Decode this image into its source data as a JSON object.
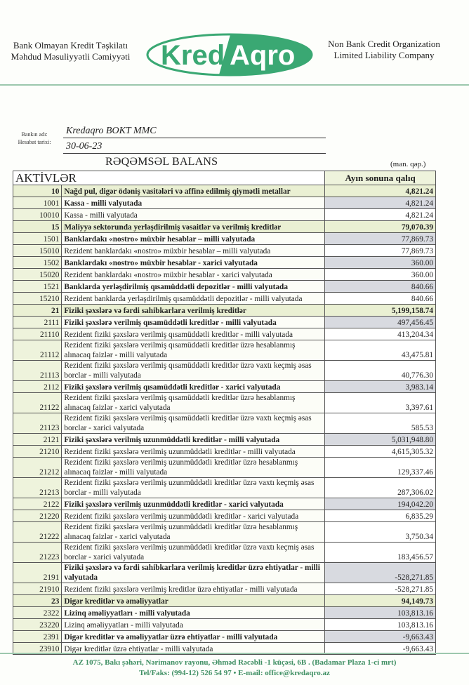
{
  "header": {
    "left_line1": "Bank Olmayan Kredit Təşkilatı",
    "left_line2": "Məhdud Məsuliyyətli Cəmiyyəti",
    "logo_text_1": "Kred",
    "logo_text_2": "Aqro",
    "right_line1": "Non Bank Credit Organization",
    "right_line2": "Limited Liability Company",
    "brand_color": "#3aa873"
  },
  "meta": {
    "bank_label": "Bankın adı:",
    "bank_value": "Kredaqro  BOKT MMC",
    "date_label": "Hesabat tarixi:",
    "date_value": "30-06-23"
  },
  "title": "RƏQƏMSƏL BALANS",
  "unit": "(man. qəp.)",
  "table": {
    "section": "AKTİVLƏR",
    "value_header": "Ayın sonuna qalıq",
    "rows": [
      {
        "code": "10",
        "desc": "Nağd pul, digər ödəniş vasitələri və affinə edilmiş qiymətli metallar",
        "value": "4,821.24",
        "level": 1
      },
      {
        "code": "1001",
        "desc": "Kassa - milli valyutada",
        "value": "4,821.24",
        "level": 2
      },
      {
        "code": "10010",
        "desc": "Kassa - milli valyutada",
        "value": "4,821.24",
        "level": 3
      },
      {
        "code": "15",
        "desc": "Maliyyə sektorunda yerləşdirilmiş vəsaitlər və verilmiş kreditlər",
        "value": "79,070.39",
        "level": 1
      },
      {
        "code": "1501",
        "desc": "Banklardakı «nostro»  müxbir hesablar – milli valyutada",
        "value": "77,869.73",
        "level": 2
      },
      {
        "code": "15010",
        "desc": "Rezident banklardakı «nostro»  müxbir hesablar – milli valyutada",
        "value": "77,869.73",
        "level": 3
      },
      {
        "code": "1502",
        "desc": "Banklardakı «nostro» müxbir hesablar - xarici valyutada",
        "value": "360.00",
        "level": 2
      },
      {
        "code": "15020",
        "desc": "Rezident banklardakı «nostro» müxbir hesablar - xarici valyutada",
        "value": "360.00",
        "level": 3
      },
      {
        "code": "1521",
        "desc": "Banklarda yerləşdirilmiş qısamüddətli depozitlər - milli valyutada",
        "value": "840.66",
        "level": 2
      },
      {
        "code": "15210",
        "desc": "Rezident banklarda yerləşdirilmiş qısamüddətli depozitlər - milli valyutada",
        "value": "840.66",
        "level": 3
      },
      {
        "code": "21",
        "desc": "Fiziki şəxslərə və fərdi sahibkarlara verilmiş kreditlər",
        "value": "5,199,158.74",
        "level": 1
      },
      {
        "code": "2111",
        "desc": "Fiziki şəxslərə verilmiş qısamüddətli kreditlər - milli valyutada",
        "value": "497,456.45",
        "level": 2
      },
      {
        "code": "21110",
        "desc": "Rezident fiziki şəxslərə verilmiş qısamüddətli kreditlər - milli valyutada",
        "value": "413,204.34",
        "level": 3
      },
      {
        "code": "21112",
        "desc": "Rezident fiziki şəxslərə verilmiş qısamüddətli kreditlər üzrə hesablanmış alınacaq faizlər - milli valyutada",
        "value": "43,475.81",
        "level": 3
      },
      {
        "code": "21113",
        "desc": "Rezident fiziki şəxslərə verilmiş qısamüddətli kreditlər üzrə vaxtı keçmiş əsas borclar - milli valyutada",
        "value": "40,776.30",
        "level": 3
      },
      {
        "code": "2112",
        "desc": "Fiziki şəxslərə verilmiş qısamüddətli kreditlər - xarici valyutada",
        "value": "3,983.14",
        "level": 2
      },
      {
        "code": "21122",
        "desc": "Rezident fiziki şəxslərə verilmiş qısamüddətli kreditlər üzrə hesablanmış alınacaq faizlər - xarici valyutada",
        "value": "3,397.61",
        "level": 3
      },
      {
        "code": "21123",
        "desc": "Rezident fiziki şəxslərə verilmiş qısamüddətli kreditlər üzrə vaxtı keçmiş əsas borclar - xarici valyutada",
        "value": "585.53",
        "level": 3
      },
      {
        "code": "2121",
        "desc": "Fiziki şəxslərə verilmiş uzunmüddətli kreditlər - milli valyutada",
        "value": "5,031,948.80",
        "level": 2
      },
      {
        "code": "21210",
        "desc": "Rezident fiziki şəxslərə verilmiş uzunmüddətli kreditlər - milli valyutada",
        "value": "4,615,305.32",
        "level": 3
      },
      {
        "code": "21212",
        "desc": "Rezident fiziki şəxslərə verilmiş uzunmüddətli kreditlər üzrə hesablanmış alınacaq faizlər - milli valyutada",
        "value": "129,337.46",
        "level": 3
      },
      {
        "code": "21213",
        "desc": "Rezident fiziki şəxslərə verilmiş uzunmüddətli kreditlər üzrə vaxtı keçmiş əsas borclar - milli valyutada",
        "value": "287,306.02",
        "level": 3
      },
      {
        "code": "2122",
        "desc": "Fiziki şəxslərə verilmiş uzunmüddətli kreditlər - xarici valyutada",
        "value": "194,042.20",
        "level": 2
      },
      {
        "code": "21220",
        "desc": "Rezident fiziki şəxslərə verilmiş uzunmüddətli kreditlər - xarici valyutada",
        "value": "6,835.29",
        "level": 3
      },
      {
        "code": "21222",
        "desc": "Rezident fiziki şəxslərə verilmiş uzunmüddətli kreditlər üzrə hesablanmış alınacaq faizlər - xarici valyutada",
        "value": "3,750.34",
        "level": 3
      },
      {
        "code": "21223",
        "desc": "Rezident fiziki şəxslərə verilmiş uzunmüddətli kreditlər üzrə vaxtı keçmiş əsas borclar - xarici valyutada",
        "value": "183,456.57",
        "level": 3
      },
      {
        "code": "2191",
        "desc": "Fiziki şəxslərə və fərdi sahibkarlara verilmiş kreditlər üzrə ehtiyatlar - milli valyutada",
        "value": "-528,271.85",
        "level": 2
      },
      {
        "code": "21910",
        "desc": "Rezident fiziki şəxslərə verilmiş kreditlər üzrə ehtiyatlar - milli valyutada",
        "value": "-528,271.85",
        "level": 3
      },
      {
        "code": "23",
        "desc": "Digər kreditlər və əməliyyatlar",
        "value": "94,149.73",
        "level": 1
      },
      {
        "code": "2322",
        "desc": "Lizinq əməliyyatları - milli valyutada",
        "value": "103,813.16",
        "level": 2
      },
      {
        "code": "23220",
        "desc": "Lizinq əməliyyatları - milli valyutada",
        "value": "103,813.16",
        "level": 3
      },
      {
        "code": "2391",
        "desc": "Digər kreditlər və əməliyyatlar üzrə ehtiyatlar - milli valyutada",
        "value": "-9,663.43",
        "level": 2
      },
      {
        "code": "23910",
        "desc": "Digər kreditlər üzrə ehtiyatlar - milli valyutada",
        "value": "-9,663.43",
        "level": 3
      }
    ]
  },
  "footer": {
    "address": "AZ 1075, Bakı şəhəri, Nərimanov rayonu, Əhməd Rəcəbli -1  küçəsi, 6B . (Badamar Plaza 1-ci mrt)",
    "contact": "Tel/Faks:  (994-12) 526 54 97 • E-mail: office@kredaqro.az"
  }
}
